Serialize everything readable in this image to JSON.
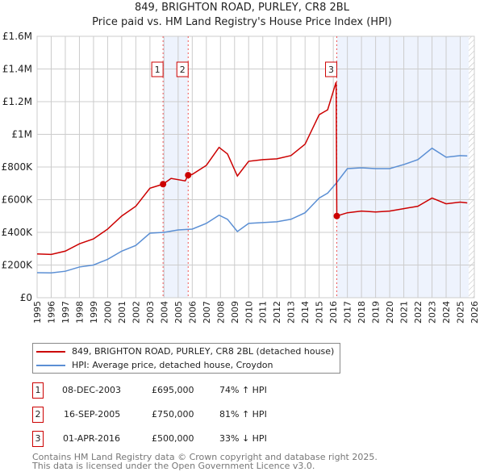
{
  "title": "849, BRIGHTON ROAD, PURLEY, CR8 2BL",
  "subtitle": "Price paid vs. HM Land Registry's House Price Index (HPI)",
  "chart_data": {
    "type": "line",
    "xlim": [
      1995,
      2026
    ],
    "ylim": [
      0,
      1600000
    ],
    "y_ticks": [
      {
        "v": 0,
        "label": "£0"
      },
      {
        "v": 200000,
        "label": "£200K"
      },
      {
        "v": 400000,
        "label": "£400K"
      },
      {
        "v": 600000,
        "label": "£600K"
      },
      {
        "v": 800000,
        "label": "£800K"
      },
      {
        "v": 1000000,
        "label": "£1M"
      },
      {
        "v": 1200000,
        "label": "£1.2M"
      },
      {
        "v": 1400000,
        "label": "£1.4M"
      },
      {
        "v": 1600000,
        "label": "£1.6M"
      }
    ],
    "x_ticks": [
      "1995",
      "1996",
      "1997",
      "1998",
      "1999",
      "2000",
      "2001",
      "2002",
      "2003",
      "2004",
      "2005",
      "2006",
      "2007",
      "2008",
      "2009",
      "2010",
      "2011",
      "2012",
      "2013",
      "2014",
      "2015",
      "2016",
      "2017",
      "2018",
      "2019",
      "2020",
      "2021",
      "2022",
      "2023",
      "2024",
      "2025",
      "2026"
    ],
    "series": [
      {
        "name": "849, BRIGHTON ROAD, PURLEY, CR8 2BL (detached house)",
        "color": "#cc0000",
        "x": [
          1995,
          1996,
          1997,
          1998,
          1999,
          2000,
          2001,
          2002,
          2003,
          2003.93,
          2004.5,
          2005.5,
          2005.71,
          2006,
          2007,
          2007.9,
          2008.5,
          2009.2,
          2010,
          2011,
          2012,
          2013,
          2014,
          2015,
          2015.3,
          2015.6,
          2016.2,
          2016.25,
          2017,
          2018,
          2019,
          2020,
          2021,
          2022,
          2023,
          2024,
          2025,
          2025.5
        ],
        "y": [
          268000,
          265000,
          285000,
          330000,
          360000,
          420000,
          500000,
          560000,
          670000,
          695000,
          730000,
          715000,
          750000,
          755000,
          810000,
          920000,
          880000,
          745000,
          835000,
          845000,
          850000,
          870000,
          940000,
          1120000,
          1135000,
          1150000,
          1320000,
          500000,
          520000,
          530000,
          525000,
          530000,
          545000,
          560000,
          610000,
          575000,
          585000,
          580000
        ]
      },
      {
        "name": "HPI: Average price, detached house, Croydon",
        "color": "#5b8fd4",
        "x": [
          1995,
          1996,
          1997,
          1998,
          1999,
          2000,
          2001,
          2002,
          2003,
          2004,
          2005,
          2006,
          2007,
          2007.9,
          2008.5,
          2009.2,
          2010,
          2011,
          2012,
          2013,
          2014,
          2015,
          2015.6,
          2016.2,
          2017,
          2018,
          2019,
          2020,
          2021,
          2022,
          2023,
          2024,
          2025,
          2025.5
        ],
        "y": [
          153000,
          152000,
          162000,
          188000,
          200000,
          235000,
          285000,
          320000,
          395000,
          400000,
          415000,
          420000,
          455000,
          505000,
          480000,
          405000,
          455000,
          460000,
          465000,
          480000,
          520000,
          610000,
          640000,
          700000,
          790000,
          795000,
          790000,
          790000,
          815000,
          845000,
          915000,
          860000,
          870000,
          868000
        ]
      }
    ],
    "sales": [
      {
        "label": "1",
        "x": 2003.93,
        "y": 695000
      },
      {
        "label": "2",
        "x": 2005.71,
        "y": 750000
      },
      {
        "label": "3",
        "x": 2016.25,
        "y": 500000
      }
    ],
    "shaded": [
      [
        2003.93,
        2005.71
      ],
      [
        2016.25,
        2025.6
      ]
    ]
  },
  "legend": {
    "red": "849, BRIGHTON ROAD, PURLEY, CR8 2BL (detached house)",
    "blue": "HPI: Average price, detached house, Croydon"
  },
  "transactions": [
    {
      "n": "1",
      "date": "08-DEC-2003",
      "price": "£695,000",
      "hpi": "74% ↑ HPI"
    },
    {
      "n": "2",
      "date": "16-SEP-2005",
      "price": "£750,000",
      "hpi": "81% ↑ HPI"
    },
    {
      "n": "3",
      "date": "01-APR-2016",
      "price": "£500,000",
      "hpi": "33% ↓ HPI"
    }
  ],
  "footer": [
    "Contains HM Land Registry data © Crown copyright and database right 2025.",
    "This data is licensed under the Open Government Licence v3.0."
  ]
}
